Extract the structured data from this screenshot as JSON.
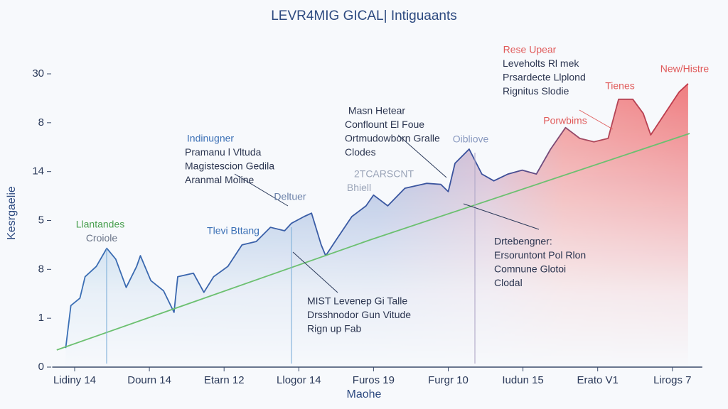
{
  "chart_data": {
    "type": "area",
    "title": "LEVR4MIG GICAL| Intiguaants",
    "y_label": "Kesrgaelie",
    "x_label": "Maohe",
    "xlim": [
      -0.3,
      8.4
    ],
    "ylim": [
      0,
      6
    ],
    "xticks": [
      {
        "value": 0,
        "label": "Lidiny 14"
      },
      {
        "value": 1,
        "label": "Dourn 14"
      },
      {
        "value": 2,
        "label": "Etarn 12"
      },
      {
        "value": 3,
        "label": "Llogor 14"
      },
      {
        "value": 4,
        "label": "Furos 19"
      },
      {
        "value": 5,
        "label": "Furgr 10"
      },
      {
        "value": 6,
        "label": "Iudun 15"
      },
      {
        "value": 7,
        "label": "Erato V1"
      },
      {
        "value": 8,
        "label": "Lirogs 7"
      }
    ],
    "yticks": [
      {
        "value": 0,
        "label": "0"
      },
      {
        "value": 1,
        "label": "1"
      },
      {
        "value": 2,
        "label": "8"
      },
      {
        "value": 3,
        "label": "5"
      },
      {
        "value": 4,
        "label": "14"
      },
      {
        "value": 5,
        "label": "8"
      },
      {
        "value": 6,
        "label": "30"
      }
    ],
    "series": [
      {
        "color": "#2f5fa8",
        "x": [
          -0.12,
          -0.05,
          0.07,
          0.14,
          0.29,
          0.43,
          0.55,
          0.69,
          0.83,
          0.88,
          1.02,
          1.19,
          1.33,
          1.38,
          1.59,
          1.73,
          1.86,
          2.05,
          2.24,
          2.43,
          2.62,
          2.81,
          2.9,
          3.07,
          3.17,
          3.3,
          3.36,
          3.52,
          3.71,
          3.9,
          4.0,
          4.19,
          4.42,
          4.71,
          4.9,
          5.0,
          5.09,
          5.28,
          5.45,
          5.61,
          5.8,
          5.99,
          6.18,
          6.37,
          6.57,
          6.76,
          6.95,
          7.14,
          7.28,
          7.47,
          7.61,
          7.71,
          7.9,
          8.09,
          8.21
        ],
        "values": [
          0.39,
          1.26,
          1.41,
          1.85,
          2.06,
          2.43,
          2.21,
          1.63,
          2.06,
          2.28,
          1.77,
          1.56,
          1.12,
          1.85,
          1.92,
          1.53,
          1.85,
          2.06,
          2.5,
          2.57,
          2.86,
          2.79,
          2.94,
          3.08,
          3.15,
          2.5,
          2.28,
          2.65,
          3.08,
          3.3,
          3.52,
          3.3,
          3.66,
          3.76,
          3.74,
          3.59,
          4.17,
          4.46,
          3.95,
          3.81,
          3.95,
          4.03,
          3.95,
          4.46,
          4.9,
          4.68,
          4.61,
          4.68,
          5.48,
          5.48,
          5.19,
          4.75,
          5.19,
          5.63,
          5.8
        ]
      },
      {
        "color": "#6cc070",
        "x": [
          -0.24,
          3.95,
          8.23
        ],
        "values": [
          0.35,
          2.6,
          4.78
        ]
      }
    ],
    "annotations": [
      [
        "Rese Upear",
        "Leveholts Rl mek",
        "Prsardecte Llplond",
        "Rignitus Slodie"
      ],
      [
        "New/Histre"
      ],
      [
        "Tienes"
      ],
      [
        "Porwbims"
      ],
      [
        "Masn Hetear",
        "Conflount El Foue",
        "Ortmudowborn Gralle",
        "Clodes"
      ],
      [
        "Oibliove"
      ],
      [
        "Indinugner",
        "Pramanu l Vltuda",
        "Magistescion Gedila",
        "Aranmal Moiine"
      ],
      [
        "2TCARSCNT",
        "Bhiell"
      ],
      [
        "Deltuer"
      ],
      [
        "Llantandes",
        "Croiole"
      ],
      [
        "Tlevi Bttang"
      ],
      [
        "Drtebengner:",
        "Ersoruntont Pol Rlon",
        "Comnune Glotoi",
        "Clodal"
      ],
      [
        "MIST Levenep Gi Talle",
        "Drsshnodor Gun Vitude",
        "Rign up Fab"
      ]
    ]
  }
}
